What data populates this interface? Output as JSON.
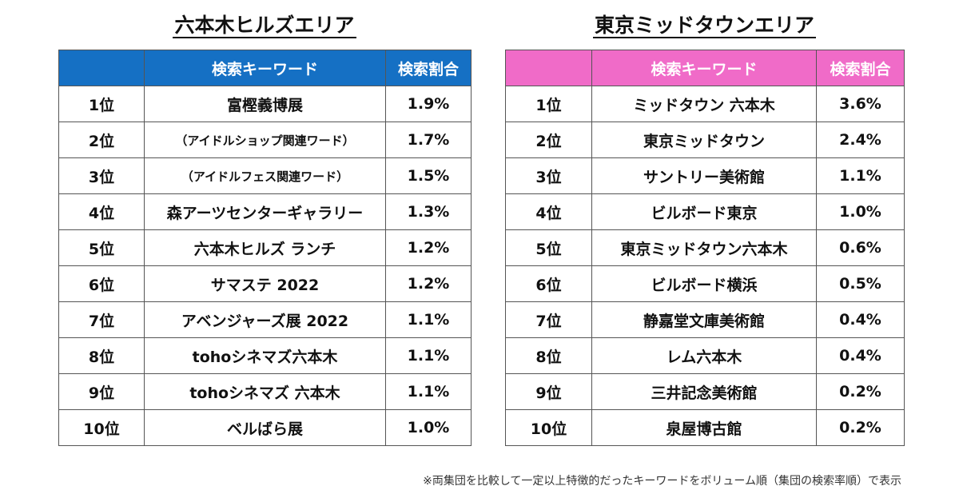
{
  "left": {
    "title": "六本木ヒルズエリア",
    "header": {
      "rank": "",
      "keyword": "検索キーワード",
      "ratio": "検索割合"
    },
    "header_color": "#1570c4",
    "rows": [
      {
        "rank": "1位",
        "keyword": "富樫義博展",
        "ratio": "1.9%"
      },
      {
        "rank": "2位",
        "keyword": "（アイドルショップ関連ワード）",
        "ratio": "1.7%"
      },
      {
        "rank": "3位",
        "keyword": "（アイドルフェス関連ワード）",
        "ratio": "1.5%"
      },
      {
        "rank": "4位",
        "keyword": "森アーツセンターギャラリー",
        "ratio": "1.3%"
      },
      {
        "rank": "5位",
        "keyword": "六本木ヒルズ ランチ",
        "ratio": "1.2%"
      },
      {
        "rank": "6位",
        "keyword": "サマステ 2022",
        "ratio": "1.2%"
      },
      {
        "rank": "7位",
        "keyword": "アベンジャーズ展 2022",
        "ratio": "1.1%"
      },
      {
        "rank": "8位",
        "keyword": "tohoシネマズ六本木",
        "ratio": "1.1%"
      },
      {
        "rank": "9位",
        "keyword": "tohoシネマズ 六本木",
        "ratio": "1.1%"
      },
      {
        "rank": "10位",
        "keyword": "ベルばら展",
        "ratio": "1.0%"
      }
    ]
  },
  "right": {
    "title": "東京ミッドタウンエリア",
    "header": {
      "rank": "",
      "keyword": "検索キーワード",
      "ratio": "検索割合"
    },
    "header_color": "#f06bc8",
    "rows": [
      {
        "rank": "1位",
        "keyword": "ミッドタウン 六本木",
        "ratio": "3.6%"
      },
      {
        "rank": "2位",
        "keyword": "東京ミッドタウン",
        "ratio": "2.4%"
      },
      {
        "rank": "3位",
        "keyword": "サントリー美術館",
        "ratio": "1.1%"
      },
      {
        "rank": "4位",
        "keyword": "ビルボード東京",
        "ratio": "1.0%"
      },
      {
        "rank": "5位",
        "keyword": "東京ミッドタウン六本木",
        "ratio": "0.6%"
      },
      {
        "rank": "6位",
        "keyword": "ビルボード横浜",
        "ratio": "0.5%"
      },
      {
        "rank": "7位",
        "keyword": "静嘉堂文庫美術館",
        "ratio": "0.4%"
      },
      {
        "rank": "8位",
        "keyword": "レム六本木",
        "ratio": "0.4%"
      },
      {
        "rank": "9位",
        "keyword": "三井記念美術館",
        "ratio": "0.2%"
      },
      {
        "rank": "10位",
        "keyword": "泉屋博古館",
        "ratio": "0.2%"
      }
    ]
  },
  "note": "※両集団を比較して一定以上特徴的だったキーワードをボリューム順（集団の検索率順）で表示"
}
